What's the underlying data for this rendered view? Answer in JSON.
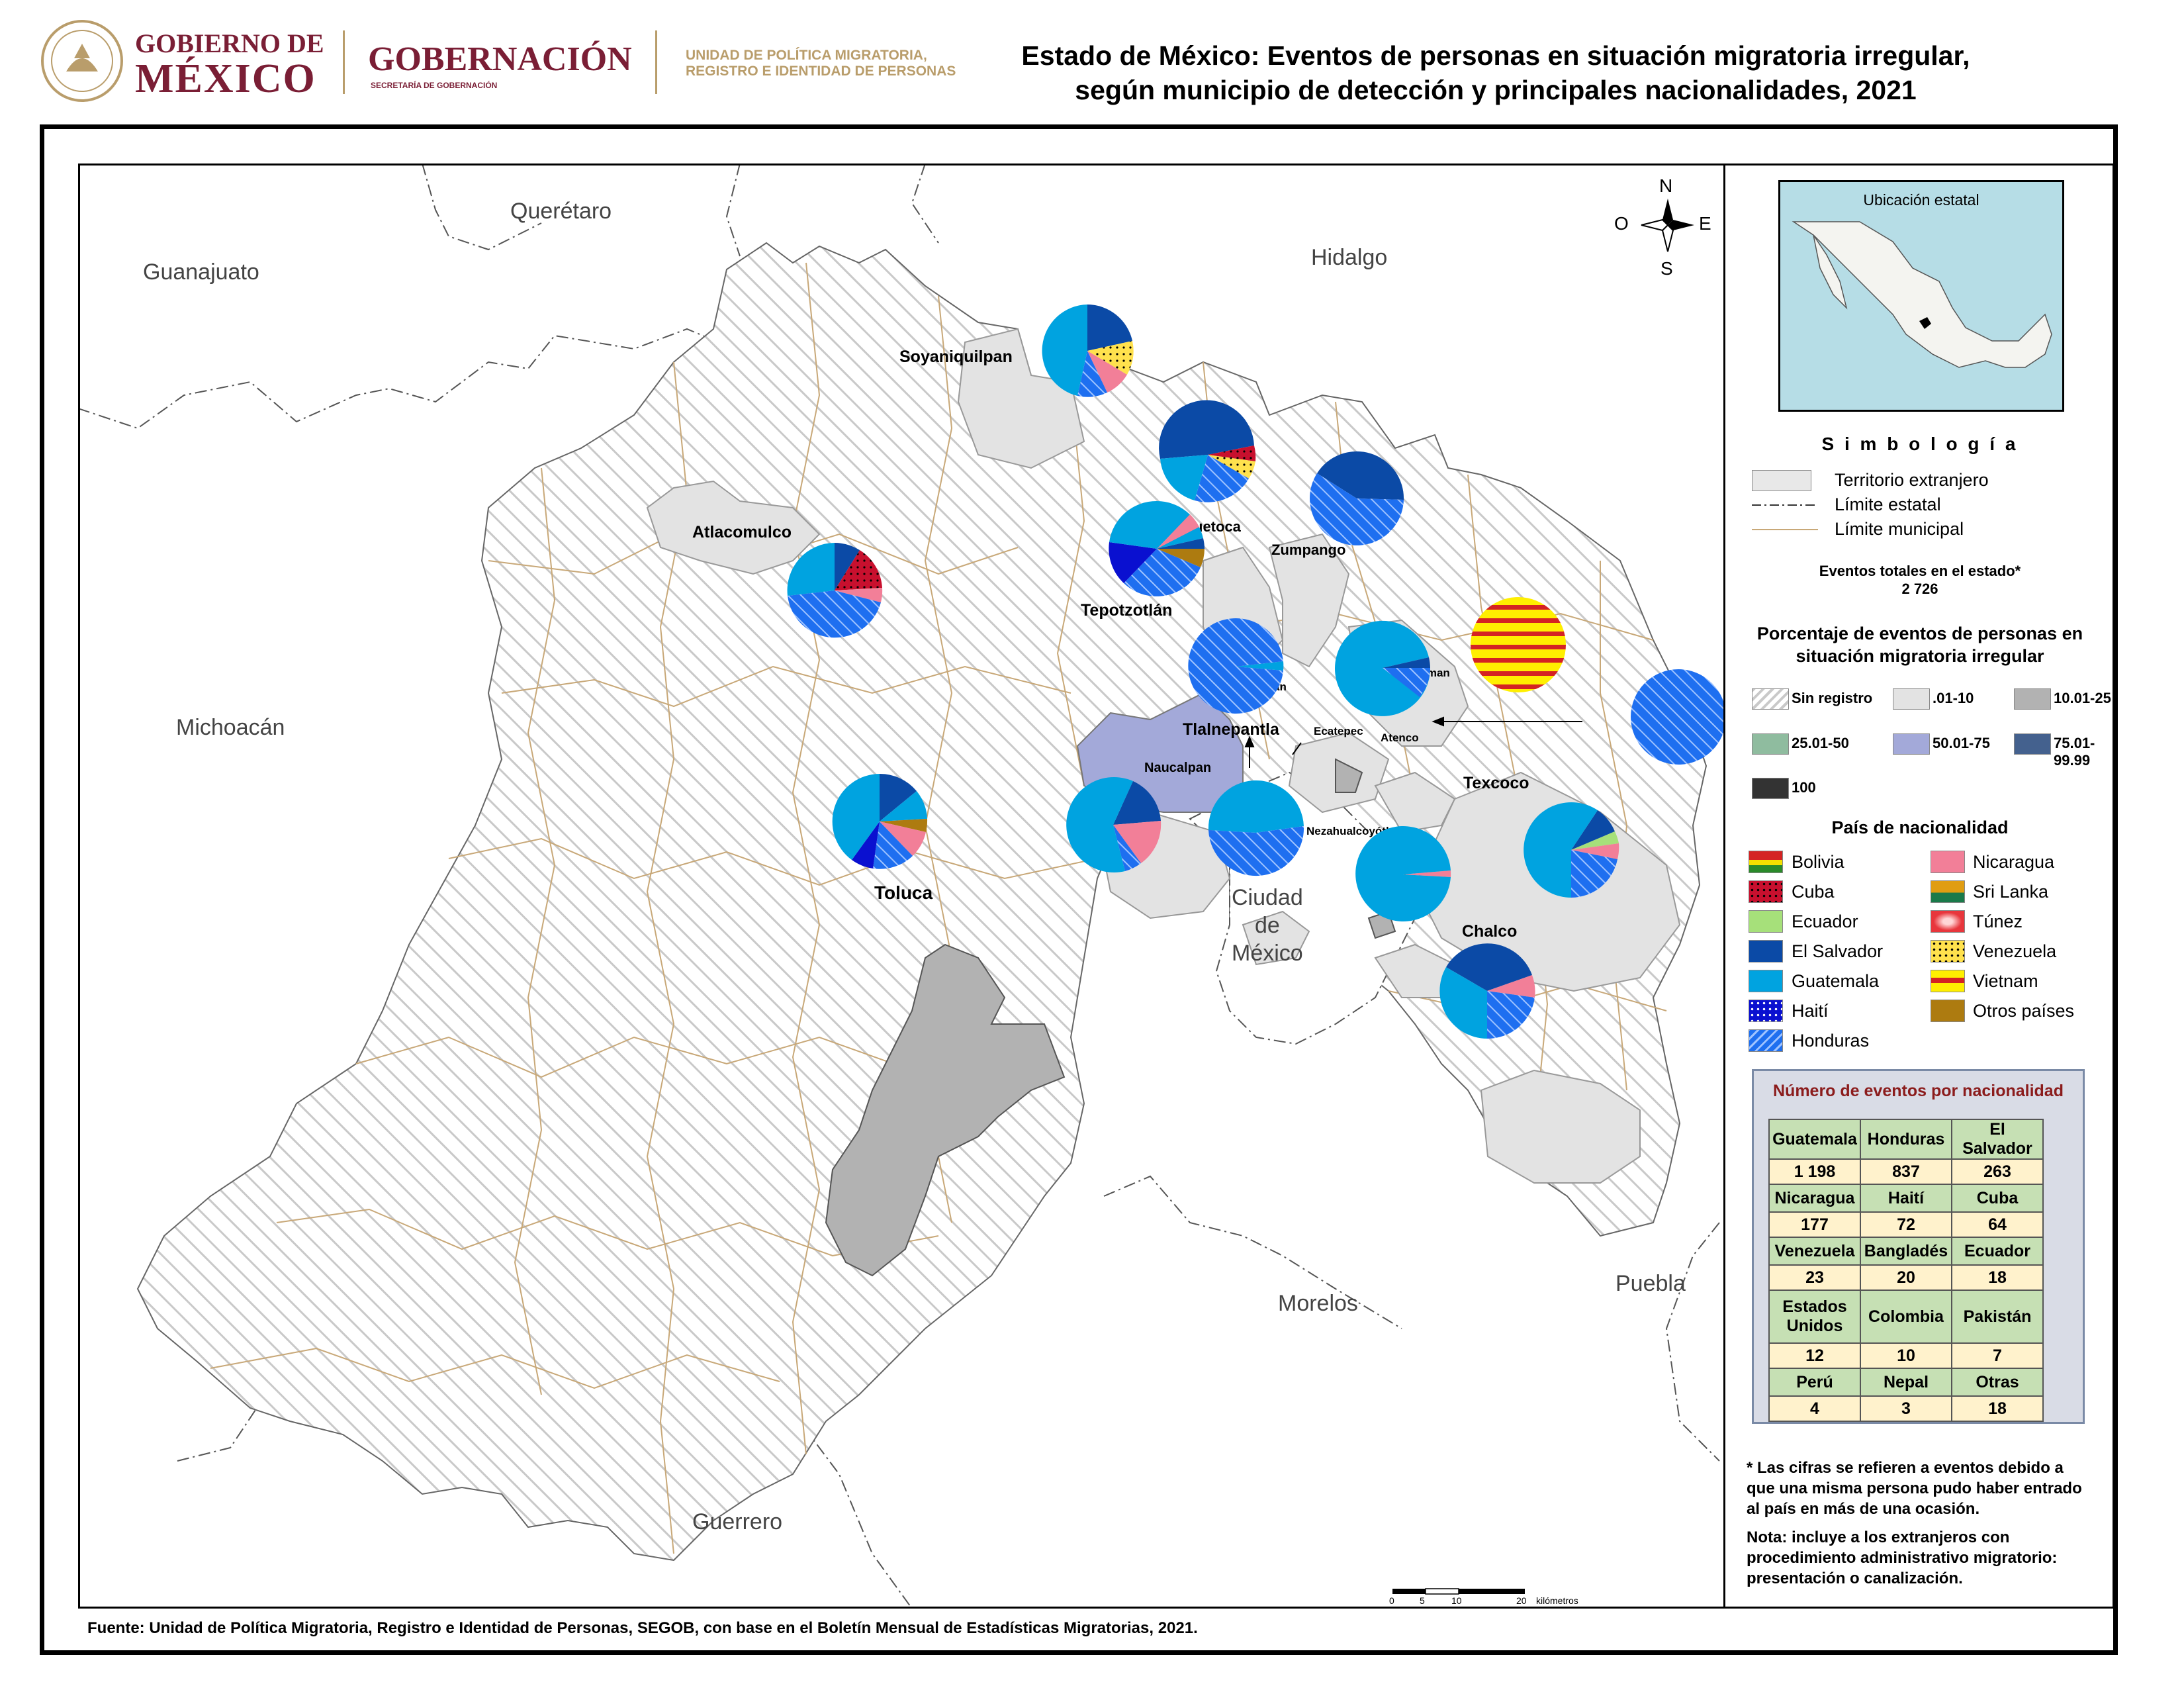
{
  "header": {
    "gob_line1": "GOBIERNO DE",
    "gob_line2": "MÉXICO",
    "gobernacion": "GOBERNACIÓN",
    "secretaria": "SECRETARÍA DE GOBERNACIÓN",
    "unidad_line1": "UNIDAD DE POLÍTICA MIGRATORIA,",
    "unidad_line2": "REGISTRO E IDENTIDAD DE PERSONAS",
    "title_line1": "Estado de México: Eventos de personas en situación migratoria irregular,",
    "title_line2": "según municipio de detección y principales nacionalidades, 2021",
    "brand_color": "#7a1e35",
    "gold_color": "#b99d6b"
  },
  "map": {
    "neighbors": {
      "queretaro": "Querétaro",
      "guanajuato": "Guanajuato",
      "hidalgo": "Hidalgo",
      "michoacan": "Michoacán",
      "cdmx1": "Ciudad",
      "cdmx2": "de",
      "cdmx3": "México",
      "morelos": "Morelos",
      "puebla": "Puebla",
      "guerrero": "Guerrero"
    },
    "municipios": {
      "soyaniquilpan": "Soyaniquilpan",
      "huehuetoca": "Huehuetoca",
      "zumpango": "Zumpango",
      "atlacomulco": "Atlacomulco",
      "tepotzotlan": "Tepotzotlán",
      "tultitlan": "Tultitlán",
      "acolman": "Acolman",
      "tlalnepantla": "Tlalnepantla",
      "ecatepec": "Ecatepec",
      "atenco": "Atenco",
      "naucalpan": "Naucalpan",
      "texcoco": "Texcoco",
      "toluca": "Toluca",
      "nezahualcoyotl": "Nezahualcoyótl",
      "chalco": "Chalco"
    },
    "compass": {
      "n": "N",
      "s": "S",
      "e": "E",
      "o": "O"
    },
    "scale": {
      "t0": "0",
      "t5": "5",
      "t10": "10",
      "t20": "20",
      "unit": "kilómetros"
    }
  },
  "legend": {
    "inset_title": "Ubicación estatal",
    "simbologia": "S i m b o l o g í a",
    "territorio": "Territorio extranjero",
    "limite_estatal": "Límite estatal",
    "limite_municipal": "Límite municipal",
    "eventos_label": "Eventos totales en el estado*",
    "eventos_value": "2 726",
    "porcentaje_line1": "Porcentaje de eventos de personas en",
    "porcentaje_line2": "situación migratoria irregular",
    "ranges": [
      {
        "label": "Sin registro",
        "color": "#ffffff"
      },
      {
        "label": ".01-10",
        "color": "#e3e3e3"
      },
      {
        "label": "10.01-25",
        "color": "#b2b2b2"
      },
      {
        "label": "25.01-50",
        "color": "#8fbc9f"
      },
      {
        "label": "50.01-75",
        "color": "#a3a9d9"
      },
      {
        "label": "75.01-99.99",
        "color": "#44618e"
      },
      {
        "label": "100",
        "color": "#333333"
      }
    ],
    "pais_title": "País de nacionalidad",
    "nationalities_left": [
      {
        "label": "Bolivia",
        "color": "#d42323"
      },
      {
        "label": "Cuba",
        "color": "#c8102e"
      },
      {
        "label": "Ecuador",
        "color": "#a6e07a"
      },
      {
        "label": "El Salvador",
        "color": "#0b4aa6"
      },
      {
        "label": "Guatemala",
        "color": "#00a3e0"
      },
      {
        "label": "Haití",
        "color": "#0a10d0"
      },
      {
        "label": "Honduras",
        "color": "#1e6ff0"
      }
    ],
    "nationalities_right": [
      {
        "label": "Nicaragua",
        "color": "#f27f98"
      },
      {
        "label": "Sri Lanka",
        "color": "#e09d12"
      },
      {
        "label": "Túnez",
        "color": "#e8363c"
      },
      {
        "label": "Venezuela",
        "color": "#ffe14d"
      },
      {
        "label": "Vietnam",
        "color": "#ffef00"
      },
      {
        "label": "Otros países",
        "color": "#ad7b10"
      }
    ],
    "table_title": "Número de eventos por nacionalidad",
    "table_rows": [
      {
        "h": [
          "Guatemala",
          "Honduras",
          "El Salvador"
        ],
        "v": [
          "1 198",
          "837",
          "263"
        ]
      },
      {
        "h": [
          "Nicaragua",
          "Haití",
          "Cuba"
        ],
        "v": [
          "177",
          "72",
          "64"
        ]
      },
      {
        "h": [
          "Venezuela",
          "Bangladés",
          "Ecuador"
        ],
        "v": [
          "23",
          "20",
          "18"
        ]
      },
      {
        "h": [
          "Estados Unidos",
          "Colombia",
          "Pakistán"
        ],
        "v": [
          "12",
          "10",
          "7"
        ]
      },
      {
        "h": [
          "Perú",
          "Nepal",
          "Otras"
        ],
        "v": [
          "4",
          "3",
          "18"
        ]
      }
    ],
    "note1_l1": "* Las cifras se refieren a eventos debido a",
    "note1_l2": "que una misma persona pudo haber entrado",
    "note1_l3": "al país en más de una ocasión.",
    "note2_l1": "Nota: incluye a los extranjeros con",
    "note2_l2": "procedimiento administrativo migratorio:",
    "note2_l3": "presentación o canalización."
  },
  "source": "Fuente: Unidad de Política Migratoria, Registro e Identidad de Personas, SEGOB, con base en el Boletín Mensual de Estadísticas Migratorias, 2021."
}
